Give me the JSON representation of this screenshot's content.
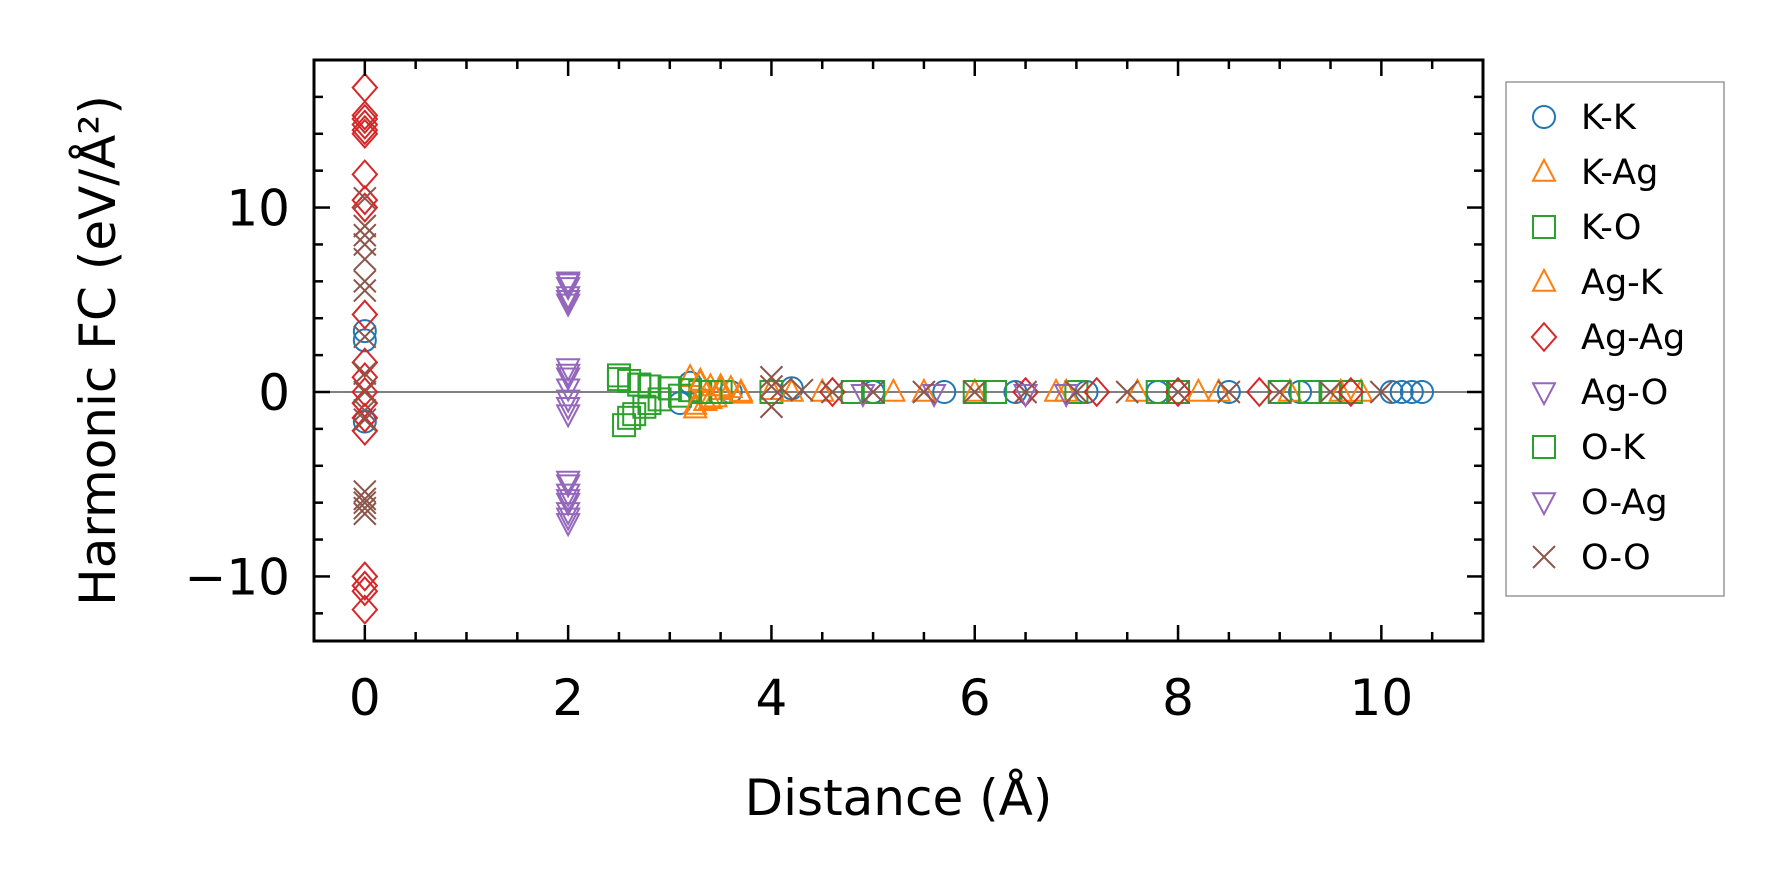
{
  "chart_data": {
    "type": "scatter",
    "title": "",
    "xlabel": "Distance (Å)",
    "ylabel": "Harmonic FC (eV/Å²)",
    "xlim": [
      -0.5,
      11.0
    ],
    "ylim": [
      -13.5,
      18.0
    ],
    "xticks": [
      0,
      2,
      4,
      6,
      8,
      10
    ],
    "yticks": [
      -10,
      0,
      10
    ],
    "xtick_labels": [
      "0",
      "2",
      "4",
      "6",
      "8",
      "10"
    ],
    "ytick_labels": [
      "−10",
      "0",
      "10"
    ],
    "legend_position": "outside-right",
    "reference_line": {
      "y": 0,
      "color": "#808080"
    },
    "series": [
      {
        "name": "K-K",
        "marker": "circle",
        "color": "#1f77b4",
        "x": [
          0,
          0,
          0,
          3.1,
          3.2,
          3.6,
          4.2,
          5.0,
          5.7,
          6.4,
          7.1,
          7.8,
          8.5,
          9.2,
          10.1,
          10.2,
          10.3,
          10.4
        ],
        "y": [
          3.3,
          2.8,
          -1.6,
          -0.6,
          0.5,
          0.0,
          0.2,
          0.0,
          0.0,
          0.0,
          0.0,
          0.0,
          0.0,
          0.0,
          0.0,
          0.0,
          0.0,
          0.0
        ]
      },
      {
        "name": "K-Ag",
        "marker": "triangle-up",
        "color": "#ff7f0e",
        "x": [
          3.2,
          3.25,
          3.3,
          3.35,
          3.4,
          3.45,
          3.5,
          3.6,
          3.7,
          4.0,
          4.5,
          5.2,
          6.0,
          6.8,
          7.6,
          8.4,
          9.1,
          9.8
        ],
        "y": [
          0.8,
          -0.9,
          0.5,
          -0.5,
          0.3,
          -0.3,
          0.1,
          0.2,
          -0.1,
          0.1,
          0.0,
          0.0,
          0.0,
          0.0,
          0.0,
          0.0,
          0.0,
          0.0
        ]
      },
      {
        "name": "K-O",
        "marker": "square",
        "color": "#2ca02c",
        "x": [
          2.5,
          2.55,
          2.6,
          2.65,
          2.7,
          2.75,
          2.8,
          2.9,
          3.0,
          3.1,
          3.2,
          3.3,
          3.5,
          4.0,
          5.0,
          6.0,
          7.0,
          8.0,
          9.0,
          9.3,
          9.5,
          9.7
        ],
        "y": [
          0.9,
          -1.8,
          0.6,
          -1.2,
          0.4,
          -0.8,
          0.3,
          -0.4,
          0.2,
          -0.2,
          0.1,
          0.0,
          0.0,
          0.0,
          0.0,
          0.0,
          0.0,
          0.0,
          0.0,
          0.0,
          0.0,
          0.0
        ]
      },
      {
        "name": "Ag-K",
        "marker": "triangle-up",
        "color": "#ff7f0e",
        "x": [
          3.25,
          3.3,
          3.4,
          3.5,
          3.7,
          4.2,
          5.5,
          6.9,
          8.2,
          9.6
        ],
        "y": [
          -0.7,
          0.6,
          -0.4,
          0.3,
          0.0,
          0.0,
          0.0,
          0.0,
          0.0,
          0.0
        ]
      },
      {
        "name": "Ag-Ag",
        "marker": "diamond",
        "color": "#d62728",
        "x": [
          0,
          0,
          0,
          0,
          0,
          0,
          0,
          0,
          0,
          0,
          0,
          0,
          0,
          0,
          0,
          0,
          0,
          0,
          0,
          0,
          4.6,
          6.5,
          7.2,
          8.0,
          8.8,
          9.7
        ],
        "y": [
          16.5,
          15.0,
          14.8,
          14.5,
          14.2,
          14.0,
          11.8,
          10.4,
          10.0,
          4.2,
          1.6,
          0.8,
          0.0,
          -0.6,
          -1.4,
          -2.1,
          -10.0,
          -10.5,
          -10.8,
          -11.8,
          0.0,
          0.0,
          0.0,
          0.0,
          0.0,
          0.0
        ]
      },
      {
        "name": "Ag-O",
        "marker": "triangle-down",
        "color": "#9467bd",
        "x": [
          2.0,
          2.0,
          2.0,
          2.0,
          2.0,
          2.0,
          2.0,
          2.0,
          2.0,
          2.0,
          2.0,
          2.0,
          2.0,
          2.0,
          5.6,
          6.9
        ],
        "y": [
          6.0,
          5.7,
          5.2,
          4.8,
          1.3,
          0.8,
          0.2,
          -0.4,
          -1.2,
          -4.8,
          -5.5,
          -6.0,
          -6.5,
          -7.1,
          -0.1,
          -0.1
        ]
      },
      {
        "name": "O-K",
        "marker": "square",
        "color": "#2ca02c",
        "x": [
          2.5,
          2.6,
          2.7,
          2.8,
          3.0,
          3.4,
          4.8,
          6.2,
          7.8,
          9.3
        ],
        "y": [
          0.7,
          -1.4,
          0.4,
          -0.6,
          0.2,
          0.0,
          0.0,
          0.0,
          0.0,
          0.0
        ]
      },
      {
        "name": "O-Ag",
        "marker": "triangle-down",
        "color": "#9467bd",
        "x": [
          2.0,
          2.0,
          2.0,
          2.0,
          2.0,
          2.0,
          2.0,
          4.9,
          6.5
        ],
        "y": [
          5.9,
          5.0,
          1.0,
          -0.8,
          -5.0,
          -5.8,
          -6.8,
          -0.1,
          -0.1
        ]
      },
      {
        "name": "O-O",
        "marker": "x",
        "color": "#8c564b",
        "x": [
          0,
          0,
          0,
          0,
          0,
          0,
          0,
          0,
          0,
          0,
          0,
          0,
          0,
          0,
          0,
          0,
          0,
          4.0,
          4.0,
          4.0,
          4.1,
          4.3,
          4.6,
          5.0,
          5.5,
          6.0,
          6.5,
          7.0,
          7.5,
          8.0,
          8.5,
          9.0,
          9.5,
          10.0
        ],
        "y": [
          10.5,
          9.0,
          8.5,
          8.0,
          7.2,
          6.0,
          5.5,
          3.0,
          1.0,
          0.0,
          -1.0,
          -5.4,
          -5.8,
          -6.0,
          -6.3,
          -6.6,
          -1.5,
          0.8,
          0.3,
          -0.8,
          0.2,
          0.1,
          0.0,
          0.0,
          0.0,
          0.0,
          0.0,
          0.0,
          0.0,
          0.0,
          0.0,
          0.0,
          0.0,
          0.0
        ]
      }
    ]
  }
}
